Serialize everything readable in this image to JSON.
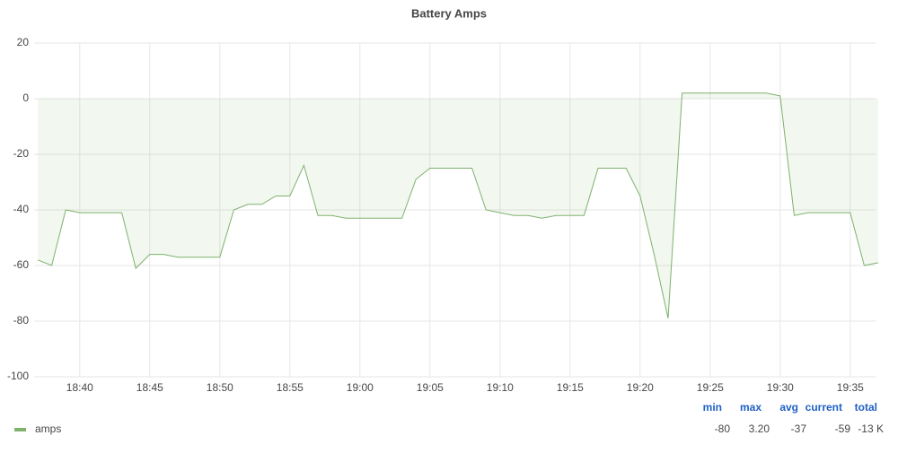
{
  "chart_data": {
    "type": "line",
    "title": "Battery Amps",
    "x": [
      "18:37",
      "18:38",
      "18:39",
      "18:40",
      "18:41",
      "18:42",
      "18:43",
      "18:44",
      "18:45",
      "18:46",
      "18:47",
      "18:48",
      "18:49",
      "18:50",
      "18:51",
      "18:52",
      "18:53",
      "18:54",
      "18:55",
      "18:56",
      "18:57",
      "18:58",
      "18:59",
      "19:00",
      "19:01",
      "19:02",
      "19:03",
      "19:04",
      "19:05",
      "19:06",
      "19:07",
      "19:08",
      "19:09",
      "19:10",
      "19:11",
      "19:12",
      "19:13",
      "19:14",
      "19:15",
      "19:16",
      "19:17",
      "19:18",
      "19:19",
      "19:20",
      "19:21",
      "19:22",
      "19:23",
      "19:24",
      "19:25",
      "19:26",
      "19:27",
      "19:28",
      "19:29",
      "19:30",
      "19:31",
      "19:32",
      "19:33",
      "19:34",
      "19:35",
      "19:36",
      "19:37"
    ],
    "series": [
      {
        "name": "amps",
        "color": "#7eb26d",
        "fill": true,
        "values": [
          -58,
          -60,
          -40,
          -41,
          -41,
          -41,
          -41,
          -61,
          -56,
          -56,
          -57,
          -57,
          -57,
          -57,
          -40,
          -38,
          -38,
          -35,
          -35,
          -24,
          -42,
          -42,
          -43,
          -43,
          -43,
          -43,
          -43,
          -29,
          -25,
          -25,
          -25,
          -25,
          -40,
          -41,
          -42,
          -42,
          -43,
          -42,
          -42,
          -42,
          -25,
          -25,
          -25,
          -35,
          -56,
          -79,
          2,
          2,
          2,
          2,
          2,
          2,
          2,
          1,
          -42,
          -41,
          -41,
          -41,
          -41,
          -60,
          -59
        ],
        "stats": [
          {
            "name": "min",
            "value": -80
          },
          {
            "name": "max",
            "value": 3.2,
            "label": "3.20"
          },
          {
            "name": "avg",
            "value": -37
          },
          {
            "name": "current",
            "value": -59
          },
          {
            "name": "total",
            "value": -13000,
            "label": "-13 K"
          }
        ]
      }
    ],
    "xlim": [
      "18:37",
      "19:37"
    ],
    "xticks": [
      "18:40",
      "18:45",
      "18:50",
      "18:55",
      "19:00",
      "19:05",
      "19:10",
      "19:15",
      "19:20",
      "19:25",
      "19:30",
      "19:35"
    ],
    "ylim": [
      -100,
      20
    ],
    "yticks": [
      -100,
      -80,
      -60,
      -40,
      -20,
      0,
      20
    ],
    "grid": true
  }
}
